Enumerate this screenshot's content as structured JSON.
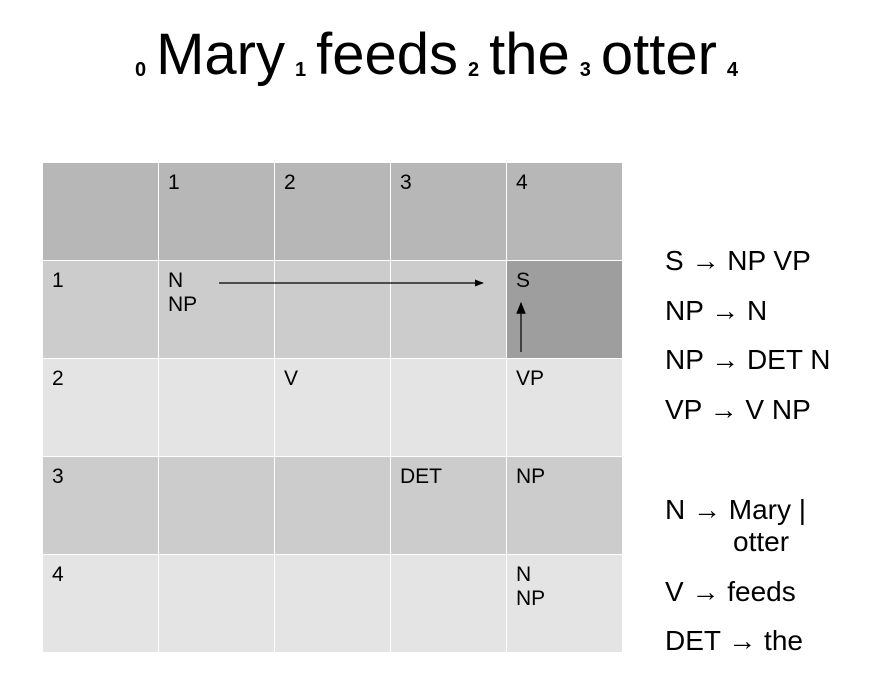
{
  "title": {
    "tokens": [
      {
        "index": "0",
        "word": "Mary"
      },
      {
        "index": "1",
        "word": "feeds"
      },
      {
        "index": "2",
        "word": "the"
      },
      {
        "index": "3",
        "word": "otter"
      }
    ],
    "final_index": "4"
  },
  "chart": {
    "col_headers": [
      "1",
      "2",
      "3",
      "4"
    ],
    "rows": [
      {
        "label": "1",
        "cells": [
          "N\nNP",
          "",
          "",
          "S"
        ]
      },
      {
        "label": "2",
        "cells": [
          "",
          "V",
          "",
          "VP"
        ]
      },
      {
        "label": "3",
        "cells": [
          "",
          "",
          "DET",
          "NP"
        ]
      },
      {
        "label": "4",
        "cells": [
          "",
          "",
          "",
          "N\nNP"
        ]
      }
    ],
    "highlight_color": "#9e9e9e"
  },
  "grammar": {
    "rules": [
      "S → NP  VP",
      "NP →  N",
      "NP → DET  N",
      "VP → V NP"
    ],
    "lexicon": [
      {
        "line1": "N → Mary |",
        "line2": "otter"
      },
      {
        "line1": "V → feeds",
        "line2": ""
      },
      {
        "line1": "DET → the",
        "line2": ""
      }
    ]
  }
}
